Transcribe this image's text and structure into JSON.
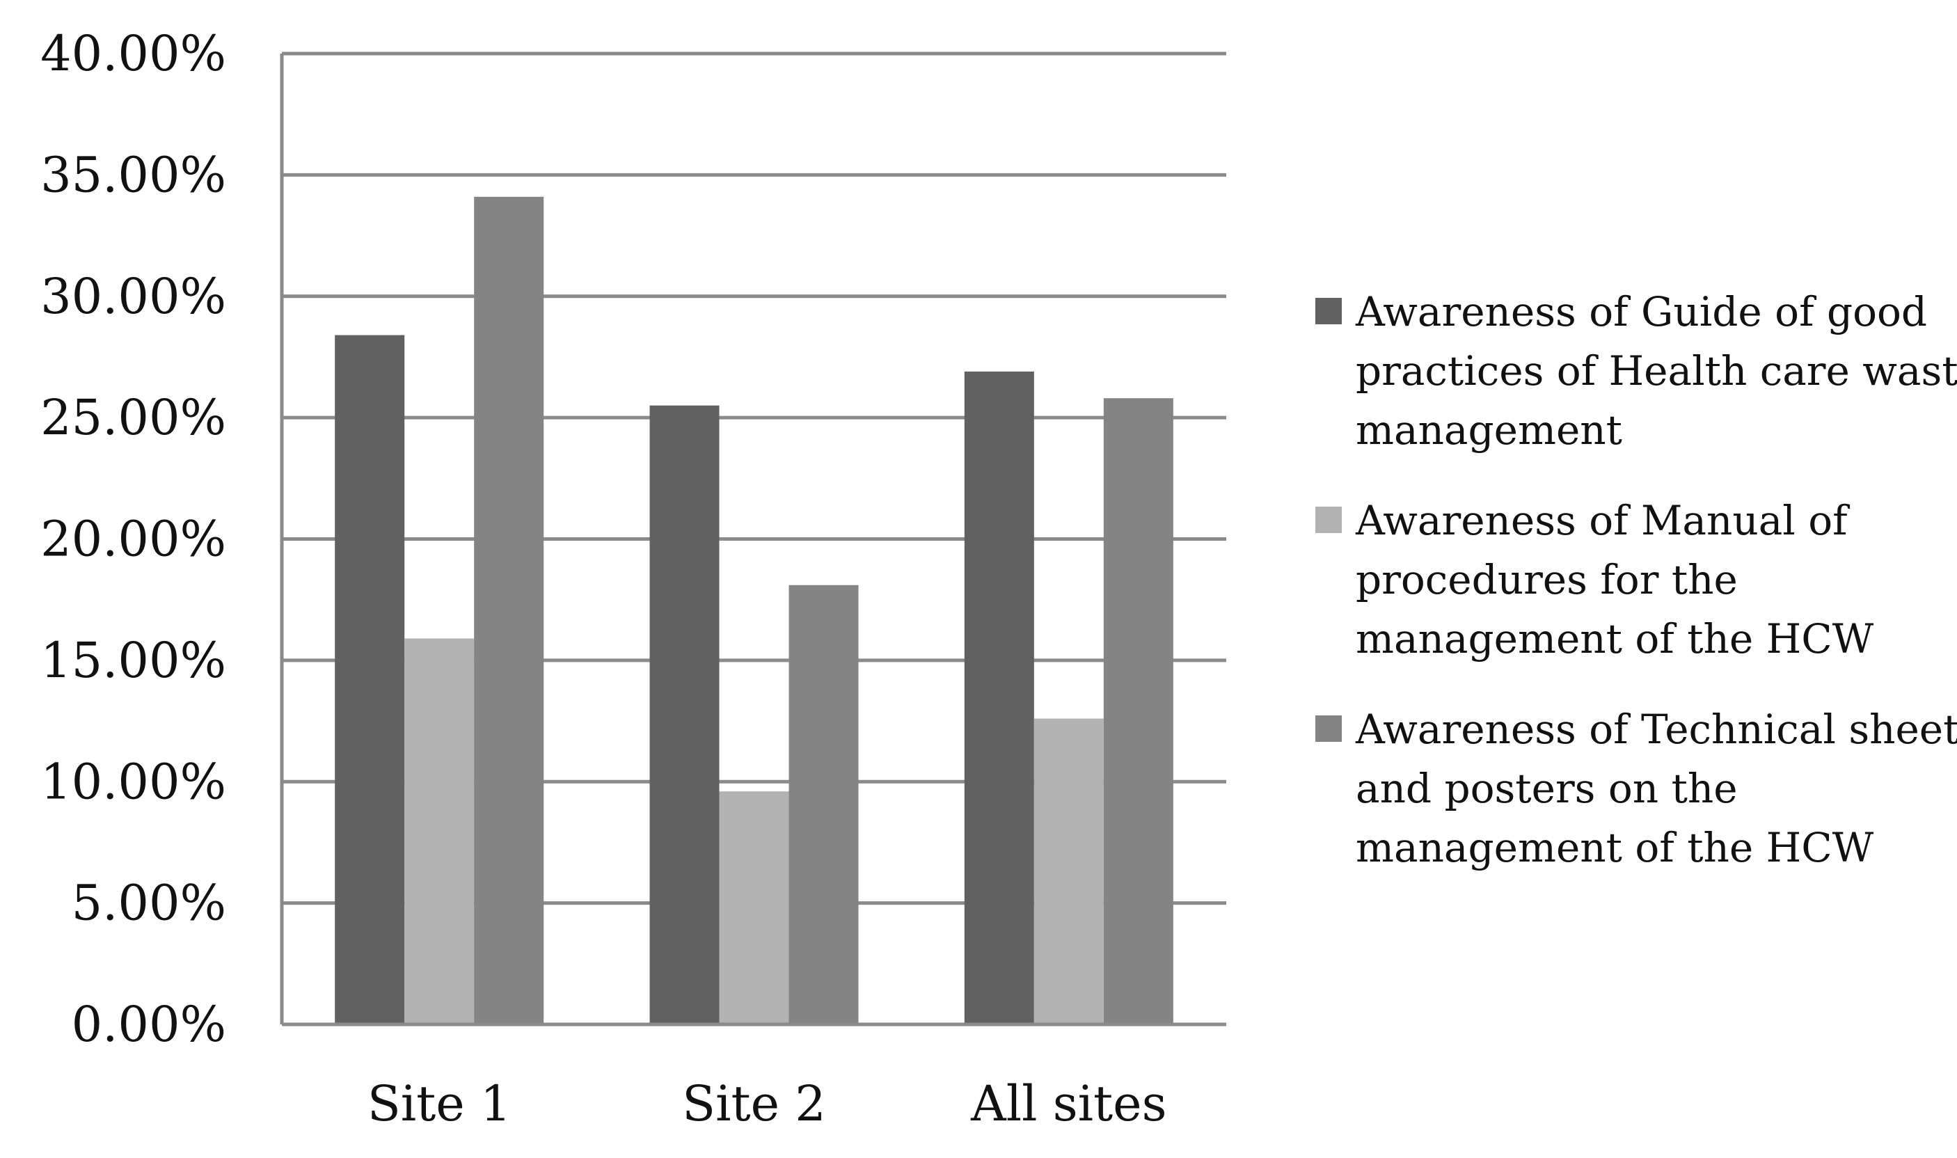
{
  "chart_data": {
    "type": "bar",
    "categories": [
      "Site 1",
      "Site 2",
      "All sites"
    ],
    "series": [
      {
        "name": "Awareness of Guide of good practices of Health care waste management",
        "legend_lines": [
          "Awareness of Guide of good",
          "practices of Health care waste",
          "management"
        ],
        "color": "#616161",
        "values": [
          28.4,
          25.5,
          26.9
        ]
      },
      {
        "name": "Awareness of Manual of procedures for the management of the HCW",
        "legend_lines": [
          "Awareness of Manual of",
          "procedures for the",
          "management of the HCW"
        ],
        "color": "#b3b3b3",
        "values": [
          15.9,
          9.6,
          12.6
        ]
      },
      {
        "name": "Awareness of Technical sheets and posters on the management of the HCW",
        "legend_lines": [
          "Awareness of Technical sheets",
          "and posters on the",
          "management of the HCW"
        ],
        "color": "#848484",
        "values": [
          34.1,
          18.1,
          25.8
        ]
      }
    ],
    "y_ticks": [
      "0.00%",
      "5.00%",
      "10.00%",
      "15.00%",
      "20.00%",
      "25.00%",
      "30.00%",
      "35.00%",
      "40.00%"
    ],
    "ylim": [
      0,
      40
    ],
    "grid": true,
    "legend_position": "right",
    "title": "",
    "xlabel": "",
    "ylabel": ""
  }
}
